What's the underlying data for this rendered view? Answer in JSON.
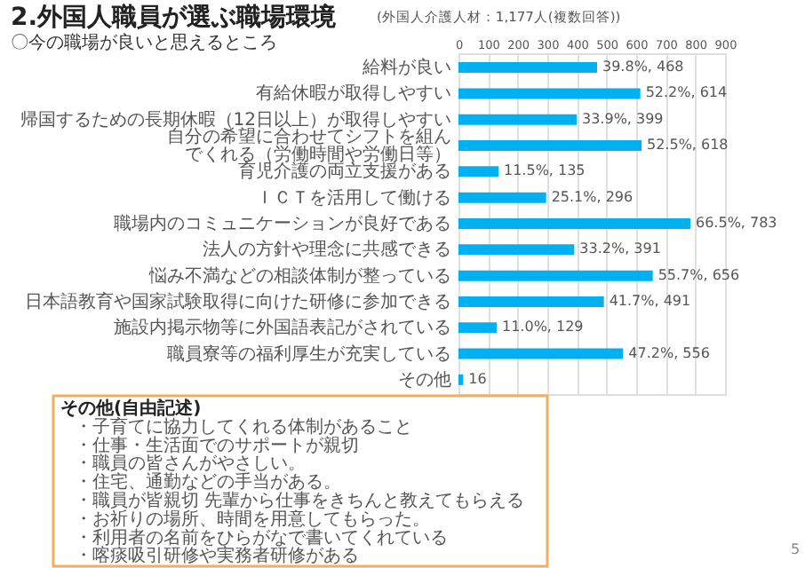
{
  "chart_data": {
    "type": "bar",
    "orientation": "horizontal",
    "title": "2.外国人職員が選ぶ職場環境",
    "subtitle": "〇今の職場が良いと思えるところ",
    "annotations": [
      "(外国人介護人材：1,177人(複数回答))",
      "その他(自由記述)",
      "・子育てに協力してくれる体制があること",
      "・仕事・生活面でのサポートが親切",
      "・職員の皆さんがやさしい。",
      "・住宅、通勤などの手当がある。",
      "・職員が皆親切 先輩から仕事をきちんと教えてもらえる",
      "・お祈りの場所、時間を用意してもらった。",
      "・利用者の名前をひらがなで書いてくれている",
      "・喀痰吸引研修や実務者研修がある",
      "5"
    ],
    "categories": [
      "給料が良い",
      "有給休暇が取得しやすい",
      "帰国するための長期休暇（12日以上）が取得しやすい",
      "自分の希望に合わせてシフトを組んでくれる（労働時間や労働日等）",
      "育児介護の両立支援がある",
      "ＩＣＴを活用して働ける",
      "職場内のコミュニケーションが良好である",
      "法人の方針や理念に共感できる",
      "悩み不満などの相談体制が整っている",
      "日本語教育や国家試験取得に向けた研修に参加できる",
      "施設内掲示物等に外国語表記がされている",
      "職員寮等の福利厚生が充実している",
      "その他"
    ],
    "values": [
      468,
      614,
      399,
      618,
      135,
      296,
      783,
      391,
      656,
      491,
      129,
      556,
      16
    ],
    "value_labels": [
      "39.8%, 468",
      "52.2%, 614",
      "33.9%, 399",
      "52.5%, 618",
      "11.5%, 135",
      "25.1%, 296",
      "66.5%, 783",
      "33.2%, 391",
      "55.7%, 656",
      "41.7%, 491",
      "11.0%, 129",
      "47.2%, 556",
      "16"
    ],
    "color": "#00b0f0",
    "xlim": [
      0,
      900
    ],
    "xticks": [
      0,
      100,
      200,
      300,
      400,
      500,
      600,
      700,
      800,
      900
    ],
    "grid": "x"
  }
}
